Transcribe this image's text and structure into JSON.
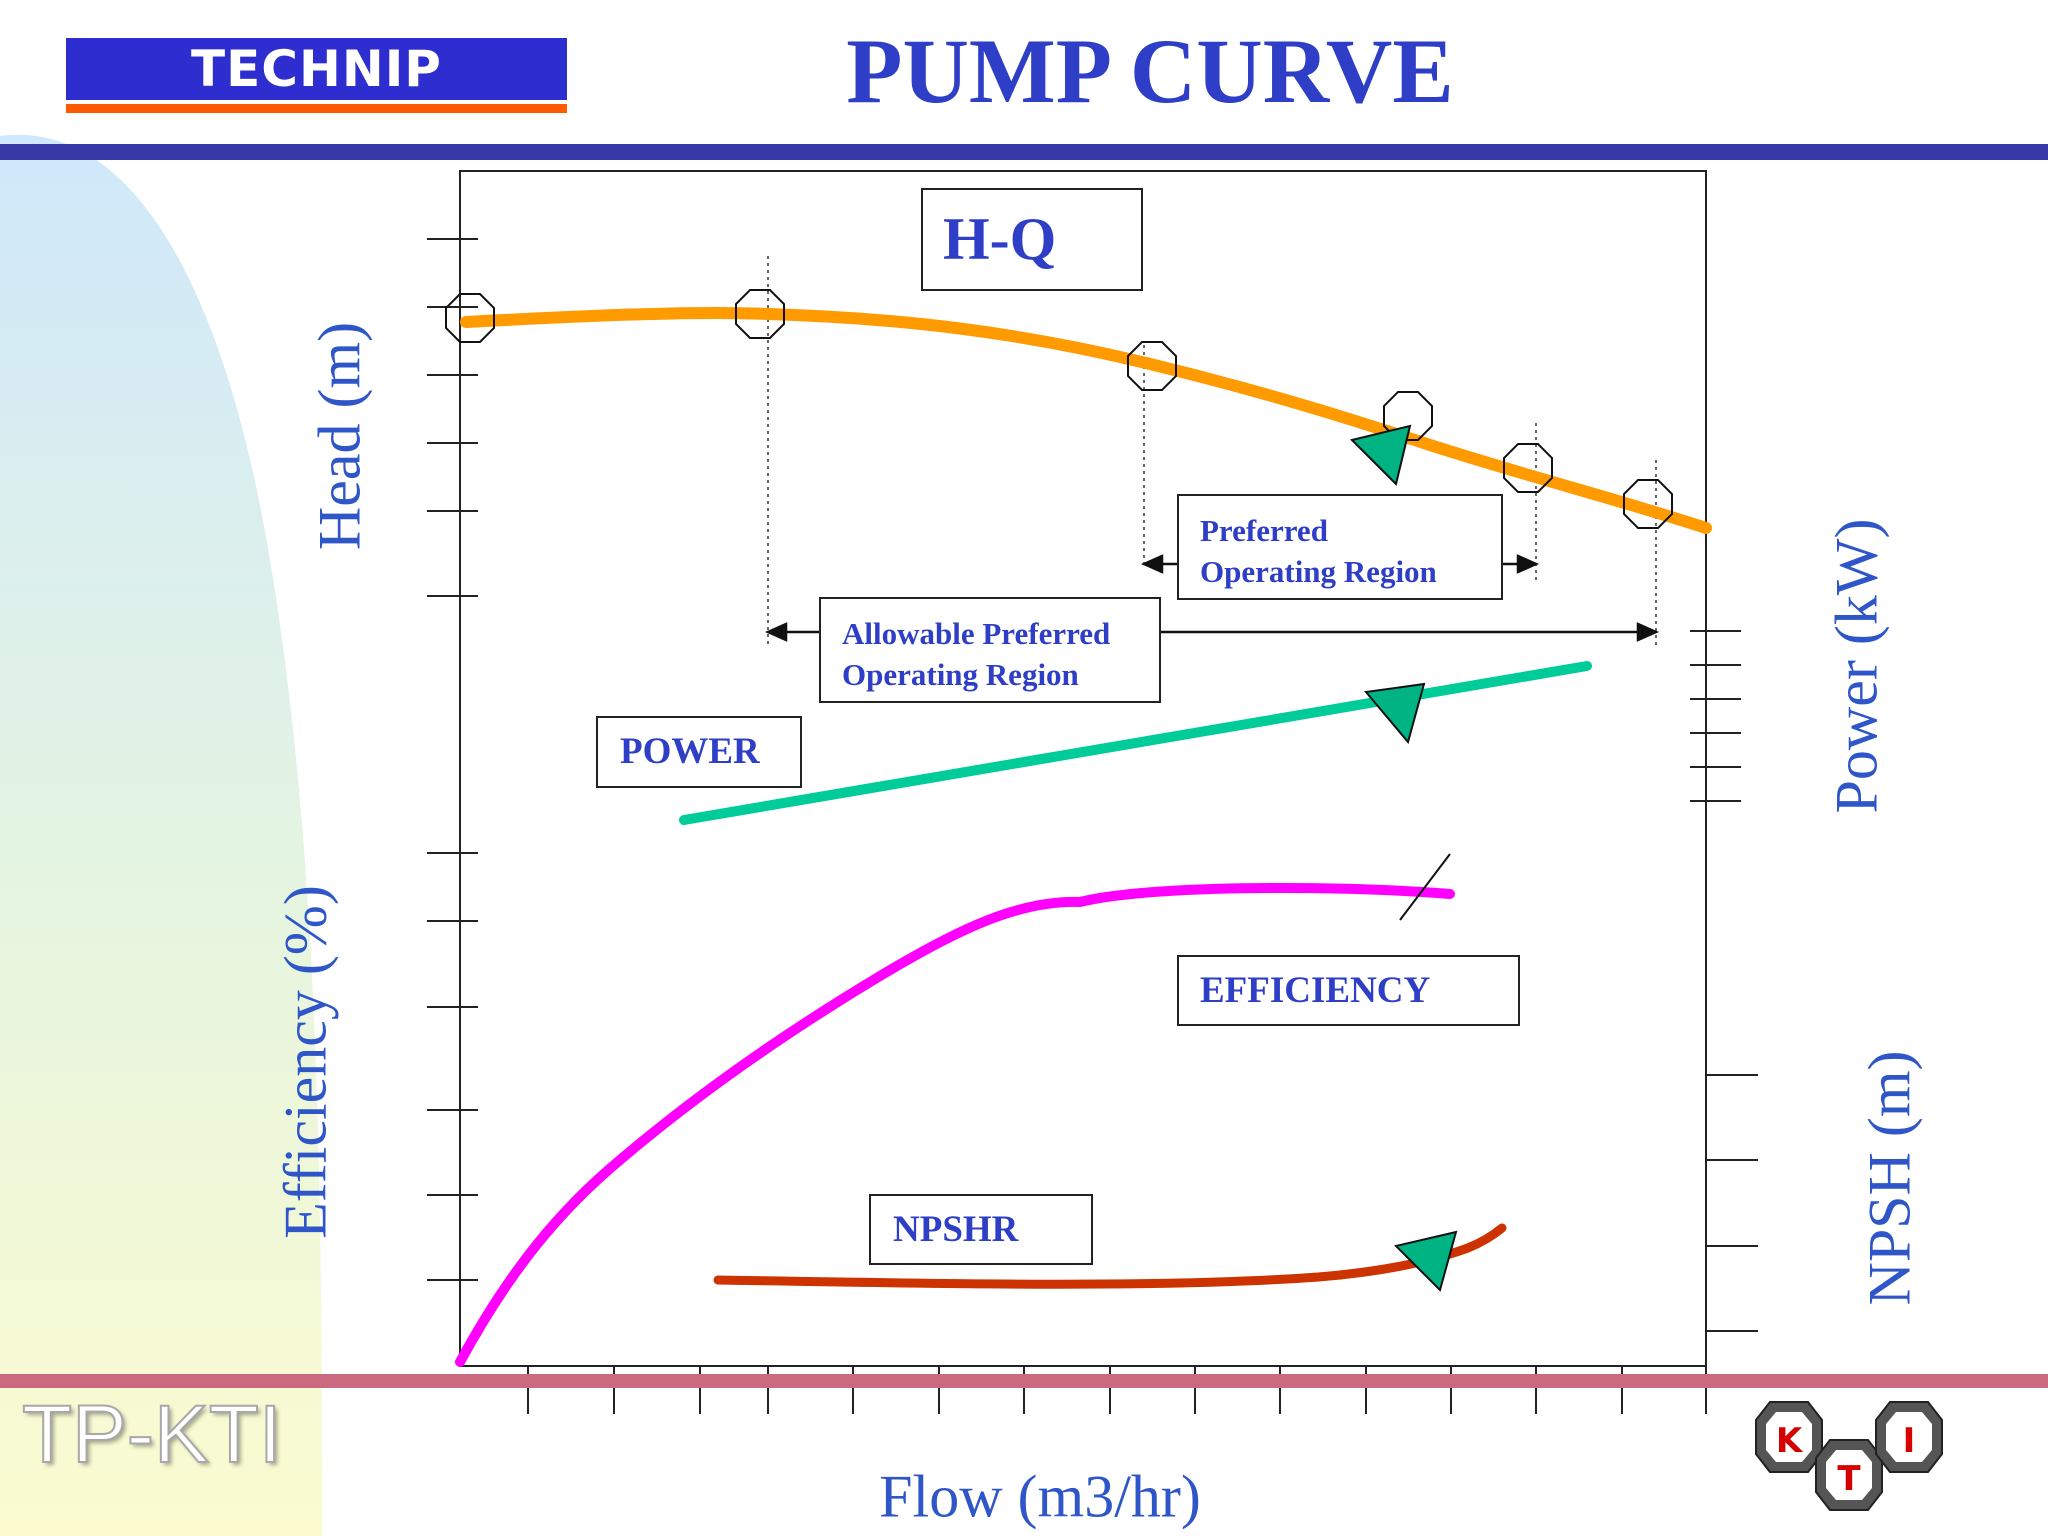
{
  "header": {
    "logo_text": "TECHNIP",
    "title": "PUMP CURVE",
    "colors": {
      "title": "#2e3ec6",
      "logo_bg": "#2e2ed0",
      "logo_underline": "#ff5a00",
      "top_rule": "#3838a8",
      "bottom_rule": "#c96a80"
    }
  },
  "footer": {
    "text": "TP-KTI",
    "kti_logo_letters": [
      "K",
      "T",
      "I"
    ]
  },
  "axes": {
    "head": "Head (m)",
    "efficiency": "Efficiency (%)",
    "power": "Power (kW)",
    "npsh": "NPSH (m)",
    "flow": "Flow (m3/hr)"
  },
  "labels": {
    "hq": "H-Q",
    "preferred_line1": "Preferred",
    "preferred_line2": "Operating Region",
    "allowable_line1": "Allowable Preferred",
    "allowable_line2": "Operating Region",
    "power": "POWER",
    "efficiency": "EFFICIENCY",
    "npshr": "NPSHR"
  },
  "curves": {
    "hq_color": "#ff9a00",
    "power_color": "#00cc99",
    "efficiency_color": "#ff00ff",
    "npshr_color": "#cc3300",
    "marker_color": "#00b383"
  }
}
